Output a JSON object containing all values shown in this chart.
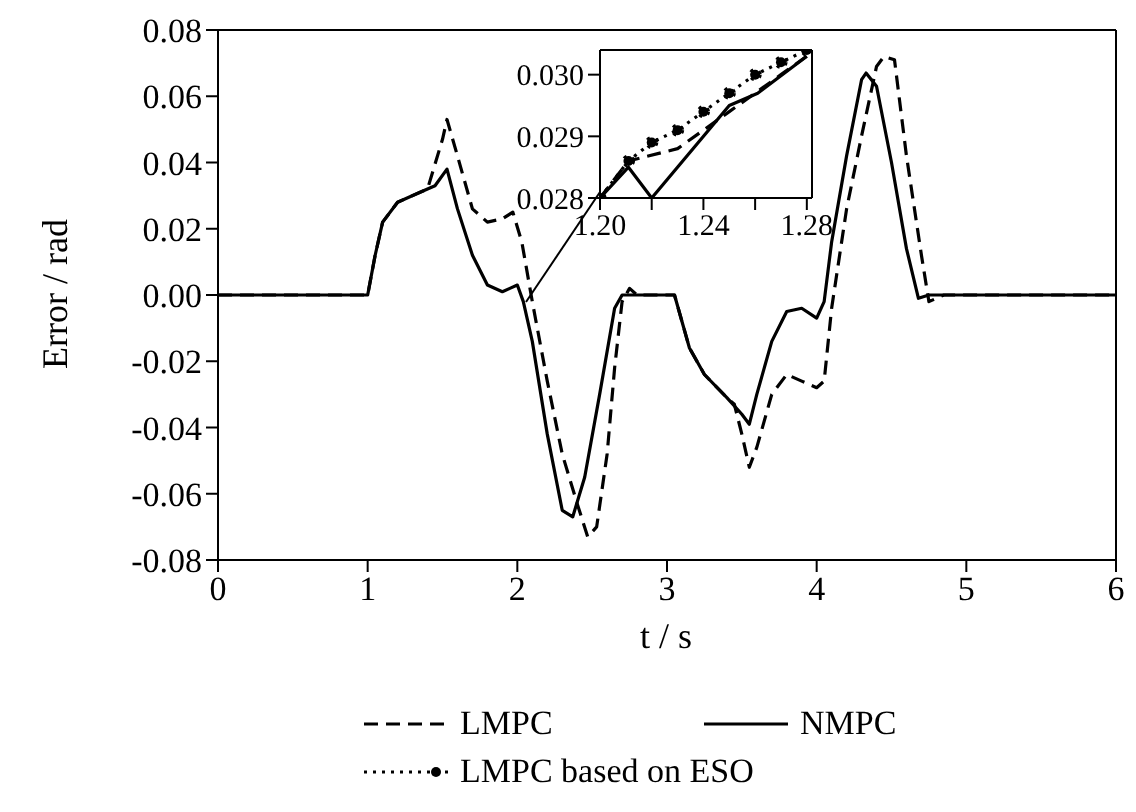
{
  "chart_data": [
    {
      "type": "line",
      "xlabel": "t / s",
      "ylabel": "Error / rad",
      "xlim": [
        0,
        6
      ],
      "xticks": [
        0,
        1,
        2,
        3,
        4,
        5,
        6
      ],
      "ylim": [
        -0.08,
        0.08
      ],
      "yticks": [
        {
          "value": -0.08,
          "label": "-0.08"
        },
        {
          "value": -0.06,
          "label": "-0.06"
        },
        {
          "value": -0.04,
          "label": "-0.04"
        },
        {
          "value": -0.02,
          "label": "-0.02"
        },
        {
          "value": 0,
          "label": "0.00"
        },
        {
          "value": 0.02,
          "label": "0.02"
        },
        {
          "value": 0.04,
          "label": "0.04"
        },
        {
          "value": 0.06,
          "label": "0.06"
        },
        {
          "value": 0.08,
          "label": "0.08"
        }
      ],
      "legend": "bottom",
      "marker": "none",
      "series": [
        {
          "name": "LMPC",
          "color": "#000000",
          "line_style": "dashed",
          "x": [
            0,
            1.0,
            1.05,
            1.1,
            1.2,
            1.4,
            1.5,
            1.53,
            1.6,
            1.7,
            1.8,
            1.9,
            1.97,
            2.03,
            2.1,
            2.2,
            2.3,
            2.4,
            2.47,
            2.53,
            2.6,
            2.65,
            2.7,
            2.75,
            2.8,
            3.05,
            3.15,
            3.25,
            3.4,
            3.45,
            3.5,
            3.55,
            3.6,
            3.7,
            3.8,
            3.9,
            4.0,
            4.05,
            4.1,
            4.2,
            4.3,
            4.4,
            4.45,
            4.52,
            4.6,
            4.7,
            4.75,
            4.85,
            6
          ],
          "values": [
            0,
            0,
            0.012,
            0.022,
            0.028,
            0.032,
            0.047,
            0.053,
            0.042,
            0.026,
            0.022,
            0.023,
            0.025,
            0.016,
            -0.002,
            -0.026,
            -0.048,
            -0.063,
            -0.073,
            -0.07,
            -0.048,
            -0.022,
            -0.002,
            0.002,
            0,
            0,
            -0.016,
            -0.024,
            -0.031,
            -0.033,
            -0.042,
            -0.052,
            -0.046,
            -0.03,
            -0.024,
            -0.026,
            -0.028,
            -0.026,
            -0.004,
            0.026,
            0.048,
            0.069,
            0.072,
            0.071,
            0.042,
            0.012,
            -0.002,
            0,
            0
          ]
        },
        {
          "name": "NMPC",
          "color": "#000000",
          "line_style": "solid",
          "x": [
            0,
            1.0,
            1.05,
            1.1,
            1.2,
            1.35,
            1.45,
            1.53,
            1.6,
            1.7,
            1.8,
            1.9,
            1.95,
            2.0,
            2.04,
            2.1,
            2.2,
            2.3,
            2.37,
            2.45,
            2.55,
            2.65,
            2.7,
            3.05,
            3.15,
            3.25,
            3.4,
            3.5,
            3.55,
            3.6,
            3.7,
            3.8,
            3.9,
            4.0,
            4.05,
            4.1,
            4.2,
            4.3,
            4.33,
            4.4,
            4.5,
            4.6,
            4.68,
            4.75,
            6
          ],
          "values": [
            0,
            0,
            0.012,
            0.022,
            0.028,
            0.031,
            0.033,
            0.038,
            0.026,
            0.012,
            0.003,
            0.001,
            0.002,
            0.003,
            -0.002,
            -0.014,
            -0.042,
            -0.065,
            -0.067,
            -0.055,
            -0.03,
            -0.004,
            0,
            0,
            -0.016,
            -0.024,
            -0.031,
            -0.036,
            -0.039,
            -0.03,
            -0.014,
            -0.005,
            -0.004,
            -0.007,
            -0.002,
            0.016,
            0.042,
            0.065,
            0.067,
            0.063,
            0.04,
            0.014,
            -0.001,
            0,
            0
          ]
        }
      ]
    },
    {
      "type": "line",
      "xlim": [
        1.2,
        1.282
      ],
      "xticks": [
        {
          "value": 1.2,
          "label": "1.20"
        },
        {
          "value": 1.22,
          "label": null
        },
        {
          "value": 1.24,
          "label": "1.24"
        },
        {
          "value": 1.26,
          "label": null
        },
        {
          "value": 1.28,
          "label": "1.28"
        }
      ],
      "ylim": [
        0.028,
        0.0304
      ],
      "yticks": [
        {
          "value": 0.028,
          "label": "0.028"
        },
        {
          "value": 0.029,
          "label": "0.029"
        },
        {
          "value": 0.03,
          "label": "0.030"
        }
      ],
      "legend": "bottom",
      "series": [
        {
          "name": "LMPC",
          "color": "#000000",
          "line_style": "dashed",
          "marker": "none",
          "x": [
            1.2,
            1.211,
            1.23,
            1.25,
            1.27,
            1.28
          ],
          "values": [
            0.028,
            0.0286,
            0.0288,
            0.0294,
            0.03,
            0.0303
          ]
        },
        {
          "name": "NMPC",
          "color": "#000000",
          "line_style": "solid",
          "marker": "none",
          "x": [
            1.2,
            1.211,
            1.22,
            1.25,
            1.261,
            1.28
          ],
          "values": [
            0.028,
            0.0285,
            0.028,
            0.0295,
            0.0297,
            0.0303
          ]
        },
        {
          "name": "LMPC based on ESO",
          "color": "#000000",
          "line_style": "dotted",
          "marker": "circle",
          "x": [
            1.2,
            1.211,
            1.22,
            1.23,
            1.24,
            1.25,
            1.26,
            1.27,
            1.28
          ],
          "values": [
            0.028,
            0.0286,
            0.0289,
            0.0291,
            0.0294,
            0.0297,
            0.03,
            0.0302,
            0.0304
          ]
        }
      ]
    }
  ]
}
